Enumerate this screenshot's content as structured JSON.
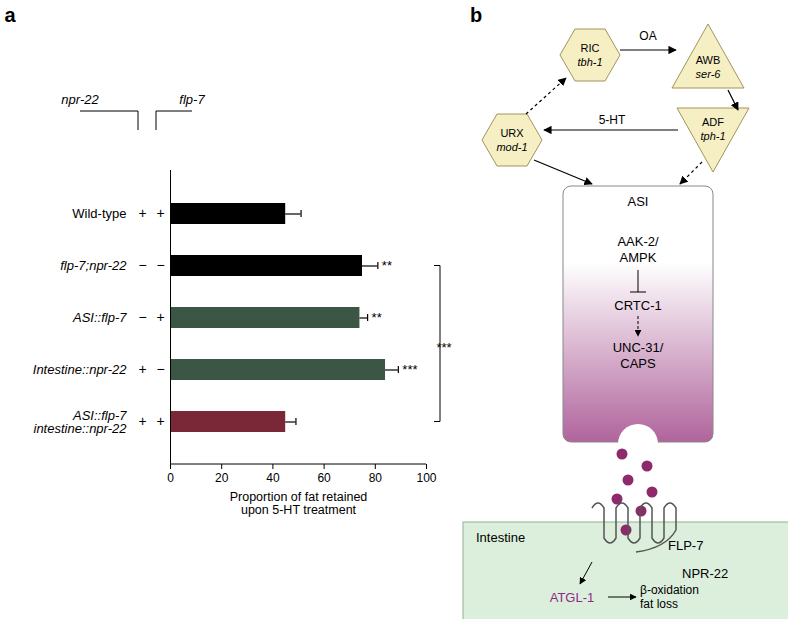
{
  "panel_labels": [
    "a",
    "b"
  ],
  "chart_data": {
    "type": "bar",
    "orientation": "horizontal",
    "categories": [
      "Wild-type",
      "flp-7;npr-22",
      "ASI::flp-7",
      "Intestine::npr-22",
      "ASI::flp-7\nintestine::npr-22"
    ],
    "values": [
      45,
      75,
      74,
      84,
      45
    ],
    "errors": [
      6,
      6,
      3,
      5,
      4
    ],
    "colors": [
      "#000000",
      "#000000",
      "#3b5645",
      "#3b5645",
      "#7a2838"
    ],
    "significance": [
      null,
      "**",
      "**",
      "***",
      null
    ],
    "bracket": {
      "from": "flp-7;npr-22",
      "to": "ASI::flp-7\nintestine::npr-22",
      "label": "***"
    },
    "genotype": {
      "columns": [
        "npr-22",
        "flp-7"
      ],
      "rows": [
        [
          "+",
          "+"
        ],
        [
          "−",
          "−"
        ],
        [
          "−",
          "+"
        ],
        [
          "+",
          "−"
        ],
        [
          "+",
          "+"
        ]
      ]
    },
    "xlabel": "Proportion of fat retained\nupon 5-HT treatment",
    "xlim": [
      0,
      100
    ],
    "xticks": [
      0,
      20,
      40,
      60,
      80,
      100
    ]
  },
  "diagram": {
    "nodes": [
      {
        "id": "RIC",
        "label": "RIC",
        "gene": "tbh-1"
      },
      {
        "id": "AWB",
        "label": "AWB",
        "gene": "ser-6"
      },
      {
        "id": "ADF",
        "label": "ADF",
        "gene": "tph-1"
      },
      {
        "id": "URX",
        "label": "URX",
        "gene": "mod-1"
      }
    ],
    "edges": [
      {
        "from": "RIC",
        "to": "AWB",
        "style": "solid",
        "label": "OA"
      },
      {
        "from": "AWB",
        "to": "ADF",
        "style": "solid"
      },
      {
        "from": "ADF",
        "to": "URX",
        "style": "solid",
        "label": "5-HT"
      },
      {
        "from": "URX",
        "to": "RIC",
        "style": "dashed"
      },
      {
        "from": "URX",
        "to": "ASI",
        "style": "solid"
      },
      {
        "from": "ADF",
        "to": "ASI",
        "style": "dashed"
      }
    ],
    "asi": {
      "label": "ASI",
      "pathway": [
        "AAK-2/\nAMPK",
        "CRTC-1",
        "UNC-31/\nCAPS"
      ]
    },
    "ligand": "FLP-7",
    "receptor": "NPR-22",
    "tissue": "Intestine",
    "effector": "ATGL-1",
    "outcome": "β-oxidation\nfat loss"
  }
}
